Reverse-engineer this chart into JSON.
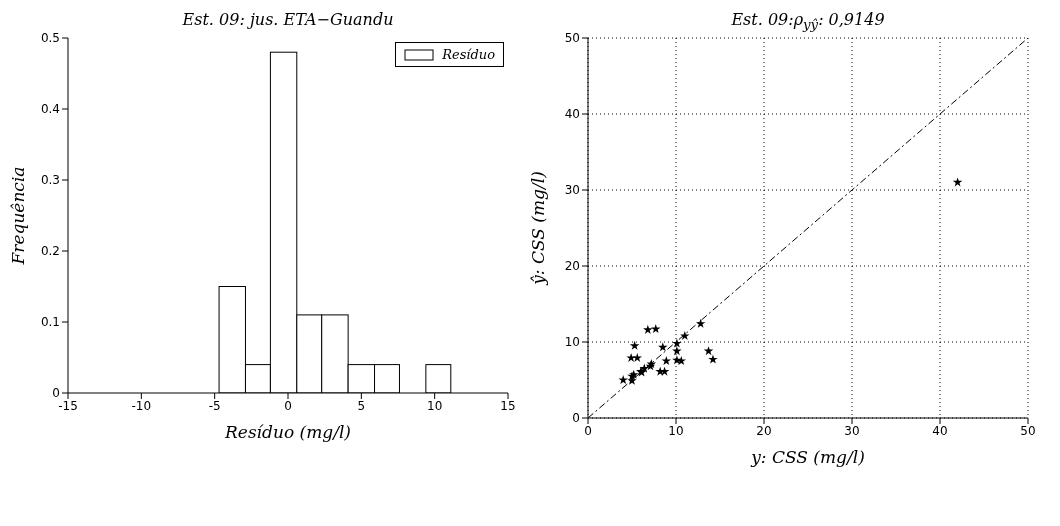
{
  "chart_data": [
    {
      "type": "histogram",
      "title": "Est. 09: jus. ETA−Guandu",
      "xlabel": "Resíduo (mg/l)",
      "ylabel": "Frequência",
      "bins": [
        -4.7,
        -2.9,
        -1.2,
        0.6,
        2.3,
        4.1,
        5.9,
        7.6,
        9.4,
        11.1
      ],
      "series": [
        {
          "name": "Resíduo",
          "color": "#ffffff",
          "values": [
            0.15,
            0.04,
            0.48,
            0.11,
            0.11,
            0.04,
            0.04,
            0,
            0.04
          ]
        }
      ],
      "xlim": [
        -15,
        15
      ],
      "xticks": [
        -15,
        -10,
        -5,
        0,
        5,
        10,
        15
      ],
      "ylim": [
        0,
        0.5
      ],
      "yticks": [
        0,
        0.1,
        0.2,
        0.3,
        0.4,
        0.5
      ],
      "legend": "top right"
    },
    {
      "type": "scatter",
      "title": "Est. 09:ρ$_{yŷ}$: 0,9149",
      "xlabel": "y: CSS (mg/l)",
      "ylabel": "ŷ: CSS (mg/l)",
      "series": [
        {
          "type": "scatter",
          "color": "#000000",
          "marker": "star",
          "x": [
            4.0,
            5.0,
            5.0,
            5.2,
            5.3,
            4.9,
            5.6,
            6.0,
            6.4,
            6.1,
            7.1,
            7.2,
            6.8,
            7.7,
            8.2,
            8.7,
            8.5,
            8.9,
            10.1,
            10.1,
            10.1,
            10.6,
            11.0,
            12.8,
            13.7,
            14.2,
            42.0
          ],
          "values": [
            5.0,
            4.9,
            5.5,
            5.7,
            9.5,
            7.9,
            7.9,
            6.1,
            6.5,
            6.0,
            6.8,
            7.1,
            11.6,
            11.7,
            6.1,
            6.1,
            9.3,
            7.5,
            9.8,
            8.8,
            7.6,
            7.5,
            10.8,
            12.4,
            8.8,
            7.7,
            31.0
          ]
        },
        {
          "type": "line",
          "color": "#000000",
          "marker": "none",
          "line_style": "dashed",
          "x": [
            0,
            50
          ],
          "values": [
            0,
            50
          ]
        }
      ],
      "xlim": [
        0,
        50
      ],
      "xticks": [
        0,
        10,
        20,
        30,
        40,
        50
      ],
      "ylim": [
        0,
        50
      ],
      "yticks": [
        0,
        10,
        20,
        30,
        40,
        50
      ],
      "grid": true
    }
  ]
}
